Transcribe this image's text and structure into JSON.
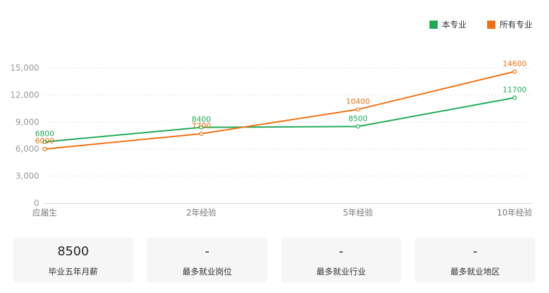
{
  "legend": [
    {
      "name": "本专业",
      "color": "#1faa59"
    },
    {
      "name": "所有专业",
      "color": "#f07111"
    }
  ],
  "chart_data": {
    "type": "line",
    "categories": [
      "应届生",
      "2年经验",
      "5年经验",
      "10年经验"
    ],
    "y_ticks": [
      "0",
      "3,000",
      "6,000",
      "9,000",
      "12,000",
      "15,000"
    ],
    "ylim": [
      0,
      15000
    ],
    "grid": true,
    "legend_position": "top-right",
    "series": [
      {
        "name": "本专业",
        "color": "#1faa59",
        "values": [
          6800,
          8400,
          8500,
          11700
        ]
      },
      {
        "name": "所有专业",
        "color": "#f07111",
        "values": [
          6000,
          7700,
          10400,
          14600
        ]
      }
    ]
  },
  "cards": [
    {
      "value": "8500",
      "label": "毕业五年月薪"
    },
    {
      "value": "-",
      "label": "最多就业岗位"
    },
    {
      "value": "-",
      "label": "最多就业行业"
    },
    {
      "value": "-",
      "label": "最多就业地区"
    }
  ]
}
